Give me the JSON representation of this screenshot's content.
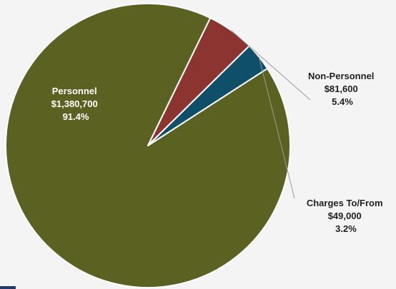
{
  "chart_data": {
    "type": "pie",
    "slices": [
      {
        "name": "Personnel",
        "value": 1380700,
        "value_label": "$1,380,700",
        "percent": 91.4,
        "percent_label": "91.4%",
        "color": "#5b6121",
        "label_color": "#ffffff"
      },
      {
        "name": "Non-Personnel",
        "value": 81600,
        "value_label": "$81,600",
        "percent": 5.4,
        "percent_label": "5.4%",
        "color": "#8c3430",
        "label_color": "#1f1f1f"
      },
      {
        "name": "Charges To/From",
        "value": 49000,
        "value_label": "$49,000",
        "percent": 3.2,
        "percent_label": "3.2%",
        "color": "#0f5068",
        "label_color": "#1f1f1f"
      }
    ]
  }
}
